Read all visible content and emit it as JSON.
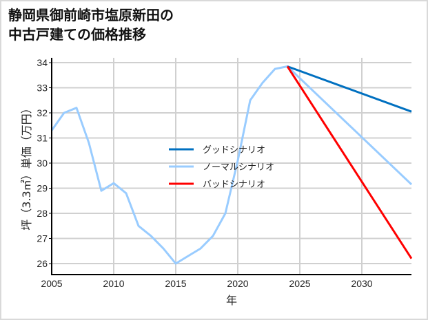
{
  "title": "静岡県御前崎市塩原新田の\n中古戸建ての価格推移",
  "chart_data": {
    "type": "line",
    "title": "静岡県御前崎市塩原新田の中古戸建ての価格推移",
    "xlabel": "年",
    "ylabel": "坪（3.3㎡）単価（万円）",
    "xlim": [
      2005,
      2034
    ],
    "ylim": [
      25.55,
      34.2
    ],
    "xticks": [
      2005,
      2010,
      2015,
      2020,
      2025,
      2030
    ],
    "yticks": [
      26,
      27,
      28,
      29,
      30,
      31,
      32,
      33,
      34
    ],
    "grid": true,
    "legend_position": "center",
    "series": [
      {
        "name": "ノーマルシナリオ",
        "color": "#99ccff",
        "x": [
          2005,
          2006,
          2007,
          2008,
          2009,
          2010,
          2011,
          2012,
          2013,
          2014,
          2015,
          2016,
          2017,
          2018,
          2019,
          2020,
          2021,
          2022,
          2023,
          2024,
          2034
        ],
        "values": [
          31.3,
          32.0,
          32.2,
          30.8,
          28.9,
          29.2,
          28.8,
          27.5,
          27.1,
          26.6,
          26.0,
          26.3,
          26.6,
          27.1,
          28.0,
          30.1,
          32.5,
          33.2,
          33.75,
          33.85,
          29.15
        ]
      },
      {
        "name": "グッドシナリオ",
        "color": "#0070c0",
        "x": [
          2024,
          2034
        ],
        "values": [
          33.85,
          32.05
        ]
      },
      {
        "name": "バッドシナリオ",
        "color": "#ff0000",
        "x": [
          2024,
          2034
        ],
        "values": [
          33.85,
          26.2
        ]
      }
    ],
    "legend": [
      {
        "label": "グッドシナリオ",
        "color": "#0070c0"
      },
      {
        "label": "ノーマルシナリオ",
        "color": "#99ccff"
      },
      {
        "label": "バッドシナリオ",
        "color": "#ff0000"
      }
    ]
  }
}
